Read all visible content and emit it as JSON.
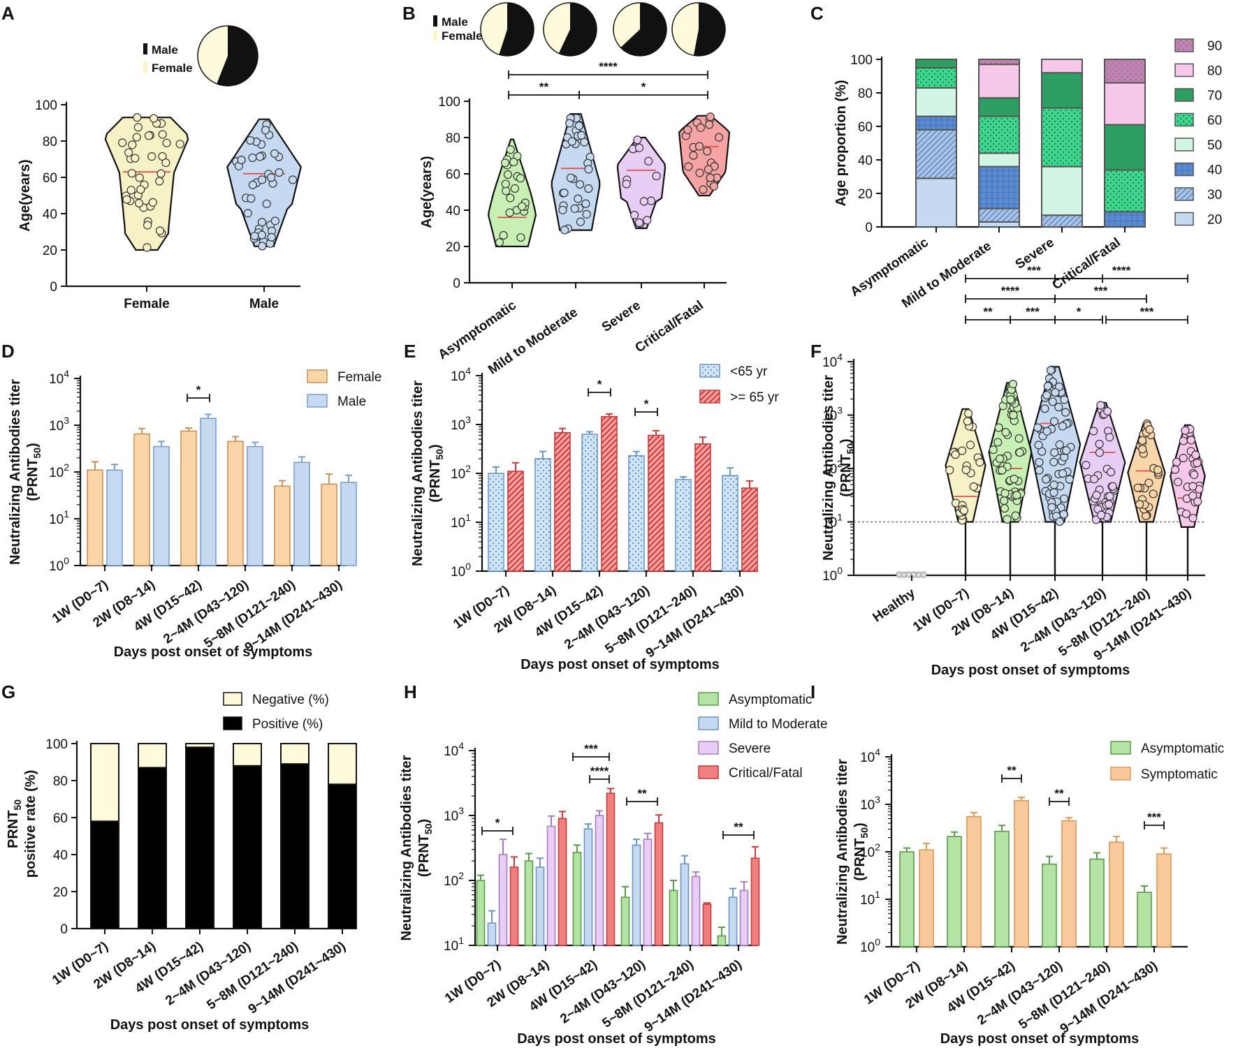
{
  "figure": {
    "background": "#ffffff"
  },
  "chart_data": [
    {
      "panel": "A",
      "type": "violin",
      "ylabel": "Age(years)",
      "ylim": [
        0,
        100
      ],
      "yticks": [
        "0",
        "20",
        "40",
        "60",
        "80",
        "100"
      ],
      "categories": [
        "Female",
        "Male"
      ],
      "colors": [
        "#f7f1c6",
        "#c5d9f1"
      ],
      "median": [
        63,
        62
      ],
      "range": [
        [
          20,
          93
        ],
        [
          22,
          92
        ]
      ],
      "legend": [
        "Male",
        "Female"
      ],
      "sex_pie_male_fraction": 0.56
    },
    {
      "panel": "B",
      "type": "violin",
      "ylabel": "Age(years)",
      "ylim": [
        0,
        100
      ],
      "yticks": [
        "0",
        "20",
        "40",
        "60",
        "80",
        "100"
      ],
      "categories": [
        "Asymptomatic",
        "Mild to Moderate",
        "Severe",
        "Critical/Fatal"
      ],
      "colors": [
        "#c8f0b4",
        "#c5d9f1",
        "#e8cdf5",
        "#f5a3a3"
      ],
      "median": [
        36,
        63,
        62,
        75
      ],
      "range": [
        [
          20,
          79
        ],
        [
          29,
          93
        ],
        [
          30,
          80
        ],
        [
          48,
          92
        ]
      ],
      "legend": [
        "Male",
        "Female"
      ],
      "sex_pie_male_fraction": [
        0.55,
        0.57,
        0.63,
        0.53
      ],
      "significance": [
        {
          "from": "Asymptomatic",
          "to": "Mild to Moderate",
          "label": "**"
        },
        {
          "from": "Mild to Moderate",
          "to": "Critical/Fatal",
          "label": "*"
        },
        {
          "from": "Asymptomatic",
          "to": "Critical/Fatal",
          "label": "****"
        }
      ]
    },
    {
      "panel": "C",
      "type": "stacked_bar",
      "ylabel": "Age proportion (%)",
      "ylim": [
        0,
        100
      ],
      "yticks": [
        "0",
        "20",
        "40",
        "60",
        "80",
        "100"
      ],
      "categories": [
        "Asymptomatic",
        "Mild to Moderate",
        "Severe",
        "Critical/Fatal"
      ],
      "series": [
        {
          "name": "20",
          "color": "#c5d9f1",
          "values": [
            29,
            3,
            0,
            0
          ]
        },
        {
          "name": "30",
          "color": "#9db8e0",
          "values": [
            29,
            8,
            7,
            0
          ]
        },
        {
          "name": "40",
          "color": "#5b8bd0",
          "values": [
            8,
            25,
            0,
            9
          ]
        },
        {
          "name": "50",
          "color": "#d3f5e3",
          "values": [
            17,
            8,
            29,
            0
          ]
        },
        {
          "name": "60",
          "color": "#3ed68d",
          "values": [
            12,
            22,
            35,
            25
          ]
        },
        {
          "name": "70",
          "color": "#2e9e62",
          "values": [
            5,
            11,
            21,
            27
          ]
        },
        {
          "name": "80",
          "color": "#f7c8ea",
          "values": [
            0,
            20,
            8,
            25
          ]
        },
        {
          "name": "90",
          "color": "#c77dc0",
          "values": [
            0,
            3,
            0,
            14
          ]
        }
      ]
    },
    {
      "panel": "D",
      "type": "bar",
      "yscale": "log",
      "ylabel": "Neutralizing Antibodies titer",
      "ylabel2": "(PRNT",
      "ylabel_sub": "50",
      "ylabel_end": ")",
      "yticks": [
        "10",
        "10",
        "10",
        "10",
        "10"
      ],
      "ytick_exp": [
        "0",
        "1",
        "2",
        "3",
        "4"
      ],
      "xlabel": "Days post onset of symptoms",
      "categories": [
        "1W (D0~7)",
        "2W (D8~14)",
        "4W (D15~42)",
        "2~4M (D43~120)",
        "5~8M (D121~240)",
        "9~14M (D241~430)"
      ],
      "series": [
        {
          "name": "Female",
          "color": "#f9d5a8",
          "values": [
            110,
            650,
            750,
            450,
            50,
            55
          ],
          "err": [
            55,
            200,
            120,
            120,
            15,
            35
          ]
        },
        {
          "name": "Male",
          "color": "#c5d9f1",
          "values": [
            110,
            350,
            1400,
            350,
            160,
            60
          ],
          "err": [
            35,
            100,
            300,
            80,
            50,
            25
          ]
        }
      ],
      "significance": [
        {
          "group": "4W (D15~42)",
          "label": "*"
        }
      ]
    },
    {
      "panel": "E",
      "type": "bar",
      "yscale": "log",
      "ylabel": "Neutralizing Antibodies titer",
      "ylabel2": "(PRNT",
      "ylabel_sub": "50",
      "ylabel_end": ")",
      "yticks": [
        "10",
        "10",
        "10",
        "10",
        "10"
      ],
      "ytick_exp": [
        "0",
        "1",
        "2",
        "3",
        "4"
      ],
      "xlabel": "Days post onset of symptoms",
      "categories": [
        "1W (D0~7)",
        "2W (D8~14)",
        "4W (D15~42)",
        "2~4M (D43~120)",
        "5~8M (D121~240)",
        "9~14M (D241~430)"
      ],
      "series": [
        {
          "name": "<65 yr",
          "color": "#c5e0f7",
          "values": [
            100,
            200,
            630,
            230,
            75,
            90
          ],
          "err": [
            35,
            80,
            80,
            50,
            10,
            40
          ]
        },
        {
          "name": ">= 65 yr",
          "color": "#f08080",
          "values": [
            110,
            680,
            1450,
            600,
            400,
            50
          ],
          "err": [
            55,
            150,
            200,
            150,
            150,
            20
          ]
        }
      ],
      "significance": [
        {
          "group": "4W (D15~42)",
          "label": "*"
        },
        {
          "group": "2~4M (D43~120)",
          "label": "*"
        }
      ]
    },
    {
      "panel": "F",
      "type": "violin",
      "yscale": "log",
      "ylabel": "Neutralizing Antibodies titer",
      "ylabel2": "(PRNT",
      "ylabel_sub": "50",
      "ylabel_end": ")",
      "yticks": [
        "10",
        "10",
        "10",
        "10",
        "10"
      ],
      "ytick_exp": [
        "0",
        "1",
        "2",
        "3",
        "4"
      ],
      "xlabel": "Days post onset of symptoms",
      "categories": [
        "Healthy",
        "1W (D0~7)",
        "2W (D8~14)",
        "4W (D15~42)",
        "2~4M (D43~120)",
        "5~8M (D121~240)",
        "9~14M (D241~430)"
      ],
      "colors": [
        "#dddddd",
        "#f7f1c6",
        "#c8f0b4",
        "#c5d9f1",
        "#e8cdf5",
        "#f9d5a8",
        "#f7c8ea"
      ],
      "median": [
        1,
        30,
        100,
        700,
        200,
        90,
        28
      ],
      "range": [
        [
          1,
          1
        ],
        [
          10,
          1300
        ],
        [
          10,
          4000
        ],
        [
          10,
          8000
        ],
        [
          10,
          1700
        ],
        [
          10,
          700
        ],
        [
          8,
          650
        ]
      ],
      "detection_limit": 10,
      "significance": [
        {
          "from": "1W (D0~7)",
          "to": "2W (D8~14)",
          "label": "**"
        },
        {
          "from": "2W (D8~14)",
          "to": "4W (D15~42)",
          "label": "***"
        },
        {
          "from": "4W (D15~42)",
          "to": "2~4M (D43~120)",
          "label": "*"
        },
        {
          "from": "2~4M (D43~120)",
          "to": "9~14M (D241~430)",
          "label": "***"
        },
        {
          "from": "1W (D0~7)",
          "to": "4W (D15~42)",
          "label": "****"
        },
        {
          "from": "4W (D15~42)",
          "to": "5~8M (D121~240)",
          "label": "***"
        },
        {
          "from": "1W (D0~7)",
          "to": "2~4M (D43~120)",
          "label": "***"
        },
        {
          "from": "4W (D15~42)",
          "to": "9~14M (D241~430)",
          "label": "****"
        }
      ]
    },
    {
      "panel": "G",
      "type": "stacked_bar",
      "ylabel": "PRNT",
      "ylabel_sub": "50",
      "ylabel2": "positive rate (%)",
      "ylim": [
        0,
        100
      ],
      "yticks": [
        "0",
        "20",
        "40",
        "60",
        "80",
        "100"
      ],
      "xlabel": "Days post onset of symptoms",
      "categories": [
        "1W (D0~7)",
        "2W (D8~14)",
        "4W (D15~42)",
        "2~4M (D43~120)",
        "5~8M (D121~240)",
        "9~14M (D241~430)"
      ],
      "series": [
        {
          "name": "Positive (%)",
          "color": "#000000",
          "values": [
            58,
            87,
            98,
            88,
            89,
            78
          ]
        },
        {
          "name": "Negative (%)",
          "color": "#fdfbdc",
          "values": [
            42,
            13,
            2,
            12,
            11,
            22
          ]
        }
      ],
      "legend_order": [
        "Negative (%)",
        "Positive (%)"
      ]
    },
    {
      "panel": "H",
      "type": "bar",
      "yscale": "log",
      "ylabel": "Neutralizing Antibodies titer",
      "ylabel2": "(PRNT",
      "ylabel_sub": "50",
      "ylabel_end": ")",
      "yticks": [
        "10",
        "10",
        "10",
        "10"
      ],
      "ytick_exp": [
        "1",
        "2",
        "3",
        "4"
      ],
      "xlabel": "Days post onset of symptoms",
      "categories": [
        "1W (D0~7)",
        "2W (D8~14)",
        "4W (D15~42)",
        "2~4M (D43~120)",
        "5~8M (D121~240)",
        "9~14M (D241~430)"
      ],
      "series": [
        {
          "name": "Asymptomatic",
          "color": "#b4e3a6",
          "values": [
            100,
            200,
            270,
            55,
            70,
            14
          ],
          "err": [
            20,
            60,
            80,
            25,
            30,
            5
          ]
        },
        {
          "name": "Mild to Moderate",
          "color": "#c5d9f1",
          "values": [
            22,
            160,
            620,
            350,
            180,
            55
          ],
          "err": [
            12,
            60,
            120,
            80,
            60,
            20
          ]
        },
        {
          "name": "Severe",
          "color": "#e8cdf5",
          "values": [
            250,
            680,
            1000,
            430,
            115,
            70
          ],
          "err": [
            180,
            300,
            180,
            100,
            20,
            25
          ]
        },
        {
          "name": "Critical/Fatal",
          "color": "#f08080",
          "values": [
            160,
            900,
            2200,
            770,
            43,
            220
          ],
          "err": [
            70,
            250,
            400,
            250,
            2,
            110
          ]
        }
      ],
      "significance": [
        {
          "group": "1W (D0~7)",
          "label": "*"
        },
        {
          "group": "4W (D15~42)",
          "label": "***"
        },
        {
          "group": "4W (D15~42)",
          "label": "****"
        },
        {
          "group": "2~4M (D43~120)",
          "label": "**"
        },
        {
          "group": "9~14M (D241~430)",
          "label": "**"
        }
      ]
    },
    {
      "panel": "I",
      "type": "bar",
      "yscale": "log",
      "ylabel": "Neutralizing Antibodies titer",
      "ylabel2": "(PRNT",
      "ylabel_sub": "50",
      "ylabel_end": ")",
      "yticks": [
        "10",
        "10",
        "10",
        "10",
        "10"
      ],
      "ytick_exp": [
        "0",
        "1",
        "2",
        "3",
        "4"
      ],
      "xlabel": "Days post onset of symptoms",
      "categories": [
        "1W (D0~7)",
        "2W (D8~14)",
        "4W (D15~42)",
        "2~4M (D43~120)",
        "5~8M (D121~240)",
        "9~14M (D241~430)"
      ],
      "series": [
        {
          "name": "Asymptomatic",
          "color": "#b4e3a6",
          "values": [
            100,
            210,
            270,
            55,
            70,
            14
          ],
          "err": [
            20,
            50,
            90,
            25,
            25,
            5
          ]
        },
        {
          "name": "Symptomatic",
          "color": "#f9c89b",
          "values": [
            110,
            550,
            1200,
            450,
            160,
            90
          ],
          "err": [
            40,
            120,
            200,
            70,
            50,
            30
          ]
        }
      ],
      "significance": [
        {
          "group": "4W (D15~42)",
          "label": "**"
        },
        {
          "group": "2~4M (D43~120)",
          "label": "**"
        },
        {
          "group": "9~14M (D241~430)",
          "label": "***"
        }
      ]
    }
  ]
}
